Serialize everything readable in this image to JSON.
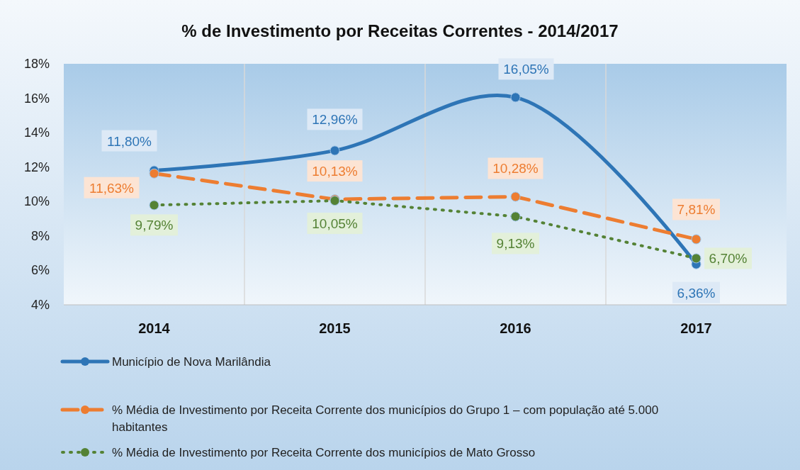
{
  "chart_data": {
    "type": "line",
    "title": "% de Investimento por Receitas Correntes - 2014/2017",
    "categories": [
      "2014",
      "2015",
      "2016",
      "2017"
    ],
    "series": [
      {
        "name": "Município de Nova Marilândia",
        "color": "#2e75b6",
        "line_style": "solid",
        "values": [
          11.8,
          12.96,
          16.05,
          6.36
        ],
        "value_labels": [
          "11,80%",
          "12,96%",
          "16,05%",
          "6,36%"
        ]
      },
      {
        "name": "% Média de Investimento por Receita Corrente dos municípios do Grupo 1 – com população até 5.000 habitantes",
        "color": "#ed7d31",
        "line_style": "dashed",
        "values": [
          11.63,
          10.13,
          10.28,
          7.81
        ],
        "value_labels": [
          "11,63%",
          "10,13%",
          "10,28%",
          "7,81%"
        ]
      },
      {
        "name": "% Média de Investimento por Receita Corrente dos municípios de Mato Grosso",
        "color": "#548235",
        "line_style": "dotted",
        "values": [
          9.79,
          10.05,
          9.13,
          6.7
        ],
        "value_labels": [
          "9,79%",
          "10,05%",
          "9,13%",
          "6,70%"
        ]
      }
    ],
    "ylim": [
      4,
      18
    ],
    "yticks": [
      {
        "value": 4,
        "label": "4%"
      },
      {
        "value": 6,
        "label": "6%"
      },
      {
        "value": 8,
        "label": "8%"
      },
      {
        "value": 10,
        "label": "10%"
      },
      {
        "value": 12,
        "label": "12%"
      },
      {
        "value": 14,
        "label": "14%"
      },
      {
        "value": 16,
        "label": "16%"
      },
      {
        "value": 18,
        "label": "18%"
      }
    ],
    "grid": "x",
    "legend": "bottom",
    "marker": "circle"
  }
}
